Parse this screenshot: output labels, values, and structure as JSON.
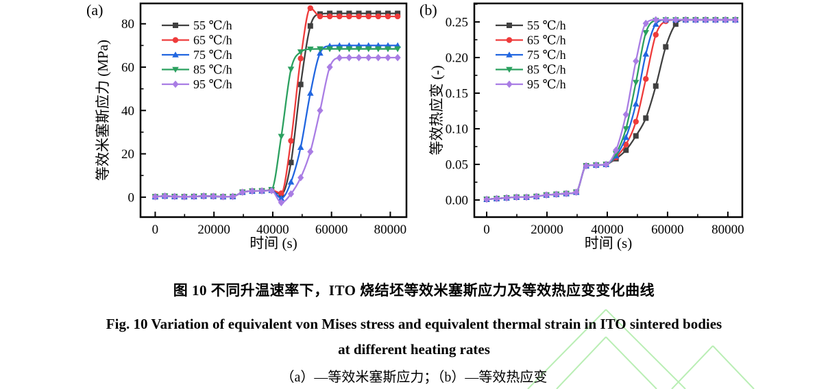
{
  "figure": {
    "captions": {
      "zh_title": "图 10  不同升温速率下，ITO 烧结坯等效米塞斯应力及等效热应变变化曲线",
      "en_title_line1": "Fig. 10 Variation of equivalent von Mises stress and equivalent thermal strain in ITO sintered bodies",
      "en_title_line2": "at different heating rates",
      "sub_caption": "（a）—等效米塞斯应力；（b）—等效热应变"
    },
    "watermark_color": "#b9eeb4"
  },
  "chart_data": [
    {
      "type": "line",
      "panel_label": "(a)",
      "xlabel": "时间 (s)",
      "ylabel": "等效米塞斯应力 (MPa)",
      "xlim": [
        -5000,
        85500
      ],
      "ylim": [
        -9.2,
        89.4
      ],
      "grid": false,
      "legend_position": "top-left-inside",
      "xticks": {
        "values": [
          0,
          20000,
          40000,
          60000,
          80000
        ],
        "labels": [
          "0",
          "20000",
          "40000",
          "60000",
          "80000"
        ]
      },
      "yticks": {
        "values": [
          0,
          20,
          40,
          60,
          80
        ],
        "labels": [
          "0",
          "20",
          "40",
          "60",
          "80"
        ]
      },
      "x": [
        0,
        3300,
        6600,
        9900,
        13200,
        16500,
        19800,
        23100,
        26400,
        29700,
        33000,
        36300,
        39600,
        42900,
        46200,
        49500,
        52800,
        56100,
        59400,
        62700,
        66000,
        69300,
        72600,
        75900,
        79200,
        82500
      ],
      "series": [
        {
          "name": "55 ℃/h",
          "color": "#404040",
          "marker": "square",
          "values": [
            0.2,
            0.5,
            0.3,
            0.2,
            0.3,
            0.5,
            0.4,
            0.2,
            0.3,
            2.3,
            2.8,
            2.9,
            3.2,
            1.2,
            16,
            52,
            79,
            84.5,
            84.8,
            84.8,
            84.8,
            84.8,
            84.8,
            84.8,
            84.8,
            84.8
          ]
        },
        {
          "name": "65 ℃/h",
          "color": "#ee3b3b",
          "marker": "circle",
          "values": [
            0.2,
            0.5,
            0.3,
            0.2,
            0.3,
            0.5,
            0.4,
            0.2,
            0.3,
            2.3,
            2.8,
            2.9,
            3.2,
            1.8,
            26,
            64,
            87.2,
            83.4,
            83.4,
            83.4,
            83.4,
            83.4,
            83.4,
            83.4,
            83.4,
            83.4
          ]
        },
        {
          "name": "75 ℃/h",
          "color": "#2166e0",
          "marker": "triangle-up",
          "values": [
            0.2,
            0.5,
            0.3,
            0.2,
            0.3,
            0.5,
            0.4,
            0.2,
            0.3,
            2.3,
            2.8,
            2.9,
            3.2,
            -0.5,
            7,
            23,
            48,
            66.5,
            69.8,
            70,
            70,
            70,
            70,
            70,
            70,
            70
          ]
        },
        {
          "name": "85 ℃/h",
          "color": "#2ba05f",
          "marker": "triangle-down",
          "values": [
            0.2,
            0.5,
            0.3,
            0.2,
            0.3,
            0.5,
            0.4,
            0.2,
            0.3,
            2.3,
            2.8,
            2.9,
            3.5,
            28,
            59,
            67,
            68.3,
            68.4,
            68.4,
            68.4,
            68.4,
            68.4,
            68.4,
            68.4,
            68.4,
            68.4
          ]
        },
        {
          "name": "95 ℃/h",
          "color": "#a97de4",
          "marker": "diamond",
          "values": [
            0.2,
            0.5,
            0.3,
            0.2,
            0.3,
            0.5,
            0.4,
            0.2,
            0.3,
            2.3,
            2.8,
            2.9,
            3.0,
            -2.5,
            1.5,
            9,
            21,
            40,
            60,
            64.3,
            64.4,
            64.4,
            64.4,
            64.4,
            64.4,
            64.4
          ]
        }
      ]
    },
    {
      "type": "line",
      "panel_label": "(b)",
      "xlabel": "时间 (s)",
      "ylabel": "等效热应变 (-)",
      "xlim": [
        -4100,
        84800
      ],
      "ylim": [
        -0.024,
        0.276
      ],
      "grid": false,
      "legend_position": "top-left-inside",
      "xticks": {
        "values": [
          0,
          20000,
          40000,
          60000,
          80000
        ],
        "labels": [
          "0",
          "20000",
          "40000",
          "60000",
          "80000"
        ]
      },
      "yticks": {
        "values": [
          0,
          0.05,
          0.1,
          0.15,
          0.2,
          0.25
        ],
        "labels": [
          "0.00",
          "0.05",
          "0.10",
          "0.15",
          "0.20",
          "0.25"
        ]
      },
      "x": [
        0,
        3300,
        6600,
        9900,
        13200,
        16500,
        19800,
        23100,
        26400,
        29700,
        33000,
        36300,
        39600,
        42900,
        46200,
        49500,
        52800,
        56100,
        59400,
        62700,
        66000,
        69300,
        72600,
        75900,
        79200,
        82500
      ],
      "series": [
        {
          "name": "55 ℃/h",
          "color": "#404040",
          "marker": "square",
          "values": [
            0.001,
            0.002,
            0.003,
            0.004,
            0.004,
            0.005,
            0.007,
            0.008,
            0.009,
            0.011,
            0.048,
            0.049,
            0.05,
            0.058,
            0.07,
            0.09,
            0.115,
            0.16,
            0.215,
            0.247,
            0.253,
            0.253,
            0.253,
            0.253,
            0.253,
            0.253
          ]
        },
        {
          "name": "65 ℃/h",
          "color": "#ee3b3b",
          "marker": "circle",
          "values": [
            0.001,
            0.002,
            0.003,
            0.004,
            0.004,
            0.005,
            0.007,
            0.008,
            0.009,
            0.011,
            0.048,
            0.049,
            0.05,
            0.06,
            0.078,
            0.11,
            0.17,
            0.232,
            0.251,
            0.253,
            0.253,
            0.253,
            0.253,
            0.253,
            0.253,
            0.253
          ]
        },
        {
          "name": "75 ℃/h",
          "color": "#2166e0",
          "marker": "triangle-up",
          "values": [
            0.001,
            0.002,
            0.003,
            0.004,
            0.004,
            0.005,
            0.007,
            0.008,
            0.009,
            0.011,
            0.048,
            0.049,
            0.05,
            0.062,
            0.088,
            0.135,
            0.205,
            0.247,
            0.253,
            0.253,
            0.253,
            0.253,
            0.253,
            0.253,
            0.253,
            0.253
          ]
        },
        {
          "name": "85 ℃/h",
          "color": "#2ba05f",
          "marker": "triangle-down",
          "values": [
            0.001,
            0.002,
            0.003,
            0.004,
            0.004,
            0.005,
            0.007,
            0.008,
            0.009,
            0.011,
            0.048,
            0.049,
            0.05,
            0.065,
            0.1,
            0.165,
            0.235,
            0.252,
            0.253,
            0.253,
            0.253,
            0.253,
            0.253,
            0.253,
            0.253,
            0.253
          ]
        },
        {
          "name": "95 ℃/h",
          "color": "#a97de4",
          "marker": "diamond",
          "values": [
            0.001,
            0.002,
            0.003,
            0.004,
            0.004,
            0.005,
            0.007,
            0.008,
            0.009,
            0.011,
            0.048,
            0.049,
            0.05,
            0.07,
            0.12,
            0.195,
            0.248,
            0.253,
            0.253,
            0.253,
            0.253,
            0.253,
            0.253,
            0.253,
            0.253,
            0.253
          ]
        }
      ]
    }
  ]
}
